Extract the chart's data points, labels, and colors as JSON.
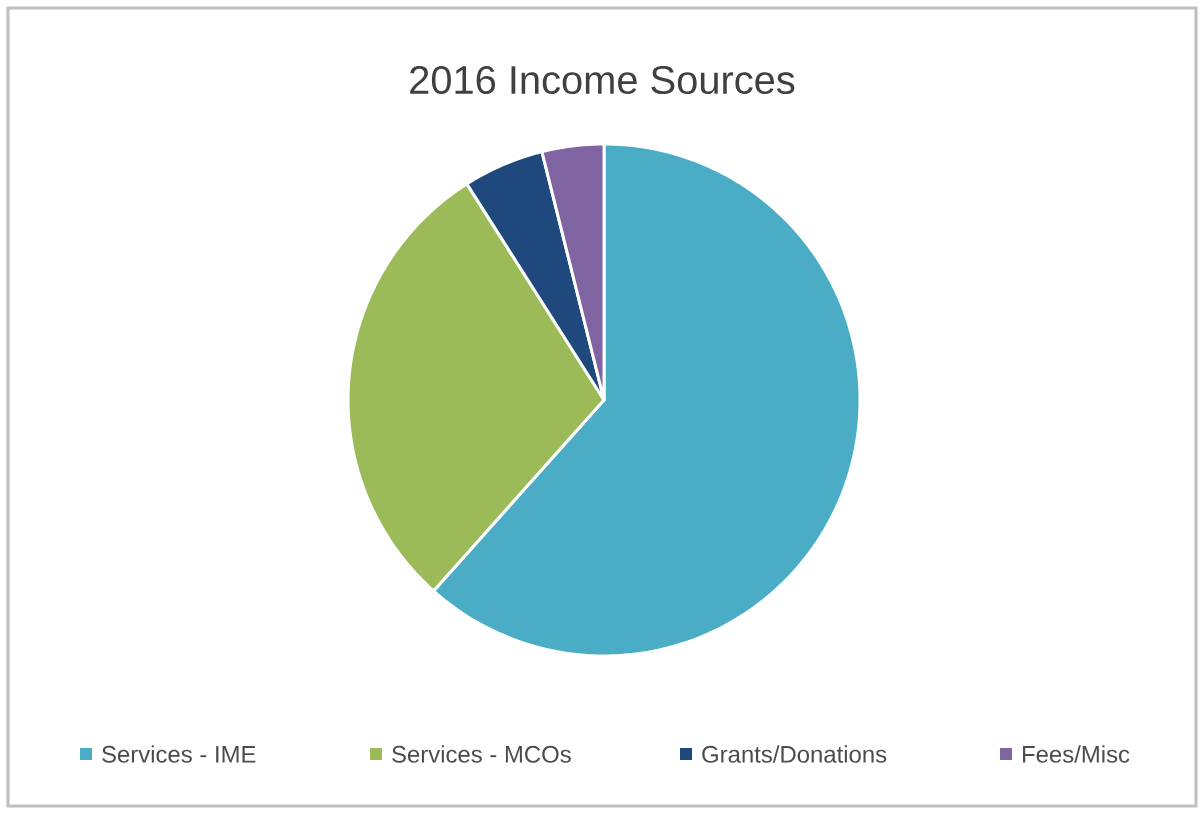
{
  "chart_data": {
    "type": "pie",
    "title": "2016 Income Sources",
    "categories": [
      "Services - IME",
      "Services - MCOs",
      "Grants/Donations",
      "Fees/Misc"
    ],
    "values": [
      61.6,
      29.4,
      5.1,
      3.9
    ],
    "colors": [
      "#4bacc6",
      "#9bbb59",
      "#1f497d",
      "#8064a2"
    ],
    "legend": "bottom"
  }
}
